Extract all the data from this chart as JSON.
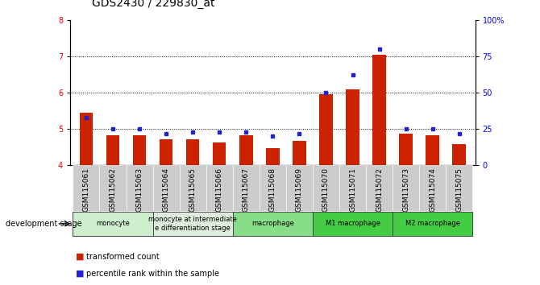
{
  "title": "GDS2430 / 229830_at",
  "samples": [
    "GSM115061",
    "GSM115062",
    "GSM115063",
    "GSM115064",
    "GSM115065",
    "GSM115066",
    "GSM115067",
    "GSM115068",
    "GSM115069",
    "GSM115070",
    "GSM115071",
    "GSM115072",
    "GSM115073",
    "GSM115074",
    "GSM115075"
  ],
  "transformed_count": [
    5.45,
    4.82,
    4.82,
    4.72,
    4.72,
    4.62,
    4.82,
    4.48,
    4.68,
    5.95,
    6.1,
    7.05,
    4.88,
    4.82,
    4.58
  ],
  "percentile_rank": [
    33,
    25,
    25,
    22,
    23,
    23,
    23,
    20,
    22,
    50,
    62,
    80,
    25,
    25,
    22
  ],
  "ylim_left": [
    4,
    8
  ],
  "ylim_right": [
    0,
    100
  ],
  "yticks_left": [
    4,
    5,
    6,
    7,
    8
  ],
  "yticks_right": [
    0,
    25,
    50,
    75,
    100
  ],
  "bar_color": "#cc2200",
  "dot_color": "#2222cc",
  "groups": [
    {
      "label": "monocyte",
      "start": 0,
      "end": 3,
      "color": "#cceecc"
    },
    {
      "label": "monocyte at intermediate\ne differentiation stage",
      "start": 3,
      "end": 6,
      "color": "#ddeedd"
    },
    {
      "label": "macrophage",
      "start": 6,
      "end": 9,
      "color": "#88dd88"
    },
    {
      "label": "M1 macrophage",
      "start": 9,
      "end": 12,
      "color": "#44cc44"
    },
    {
      "label": "M2 macrophage",
      "start": 12,
      "end": 15,
      "color": "#44cc44"
    }
  ],
  "tick_fontsize": 7,
  "title_fontsize": 10,
  "legend_fontsize": 7,
  "dev_stage_label": "development stage"
}
